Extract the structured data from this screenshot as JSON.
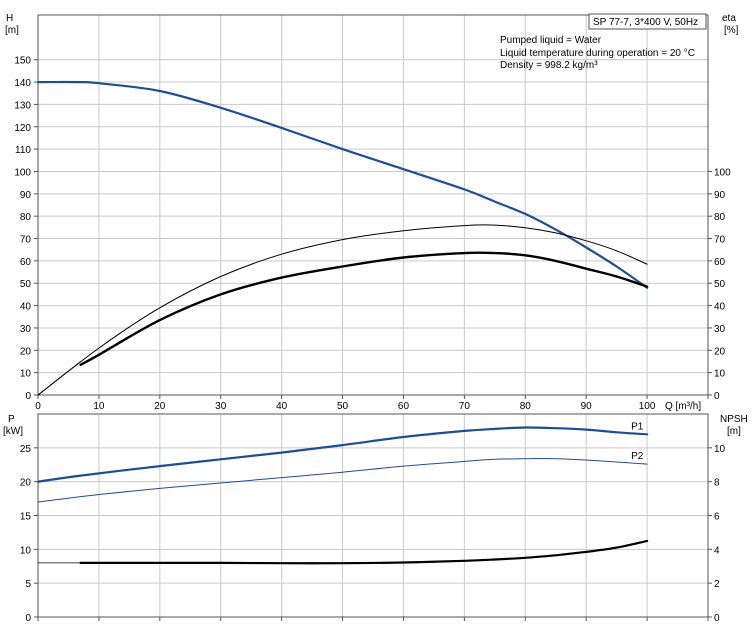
{
  "chart_data": [
    {
      "type": "line",
      "title": "SP 77-7, 3*400 V, 50Hz",
      "notes": [
        "Pumped liquid = Water",
        "Liquid temperature during operation = 20 °C",
        "Density = 998.2 kg/m³"
      ],
      "xlabel": "Q [m³/h]",
      "xlim": [
        0,
        110
      ],
      "x_ticks": [
        "0",
        "10",
        "20",
        "30",
        "40",
        "50",
        "60",
        "70",
        "80",
        "90",
        "100"
      ],
      "ylabel_left": {
        "line1": "H",
        "line2": "[m]"
      },
      "ylim_left": [
        0,
        170
      ],
      "y_ticks_left": [
        "0",
        "10",
        "20",
        "30",
        "40",
        "50",
        "60",
        "70",
        "80",
        "90",
        "100",
        "110",
        "120",
        "130",
        "140",
        "150"
      ],
      "ylabel_right": {
        "line1": "eta",
        "line2": "[%]"
      },
      "ylim_right": [
        0,
        170
      ],
      "y_ticks_right": [
        "0",
        "10",
        "20",
        "30",
        "40",
        "50",
        "60",
        "70",
        "80",
        "90",
        "100"
      ],
      "grid": true,
      "series": [
        {
          "axis": "left",
          "color": "#1f4e96",
          "width": 2.2,
          "x": [
            0,
            7,
            10,
            20,
            30,
            40,
            50,
            60,
            70,
            75,
            80,
            85,
            90,
            95,
            100
          ],
          "values": [
            140,
            140,
            139.5,
            136,
            128.5,
            119.5,
            110,
            101,
            92,
            86.5,
            81,
            74,
            66,
            57.5,
            48
          ]
        },
        {
          "axis": "right",
          "color": "#000000",
          "width": 1,
          "x": [
            0,
            10,
            20,
            30,
            40,
            50,
            60,
            70,
            75,
            80,
            85,
            90,
            95,
            100
          ],
          "values": [
            0,
            21,
            39,
            53,
            63,
            69.5,
            73.5,
            75.8,
            76,
            74.8,
            72.5,
            69,
            64.5,
            58.5
          ]
        },
        {
          "axis": "right",
          "color": "#000000",
          "width": 2.4,
          "x": [
            7,
            10,
            20,
            30,
            40,
            50,
            60,
            70,
            75,
            80,
            85,
            90,
            95,
            100
          ],
          "values": [
            13.5,
            18,
            33.5,
            45,
            52.5,
            57.5,
            61.5,
            63.5,
            63.5,
            62.5,
            60,
            56.5,
            53,
            48.5
          ]
        },
        {
          "axis": "right",
          "color": "#000000",
          "width": 0.8,
          "x": [
            0,
            7
          ],
          "values": [
            0,
            15
          ]
        }
      ]
    },
    {
      "type": "line",
      "xlim": [
        0,
        110
      ],
      "ylabel_left": {
        "line1": "P",
        "line2": "[kW]"
      },
      "ylim_left": [
        0,
        30
      ],
      "y_ticks_left": [
        "0",
        "5",
        "10",
        "15",
        "20",
        "25"
      ],
      "ylabel_right": {
        "line1": "NPSH",
        "line2": "[m]"
      },
      "ylim_right": [
        0,
        12
      ],
      "y_ticks_right": [
        "0",
        "2",
        "4",
        "6",
        "8",
        "10"
      ],
      "grid": true,
      "series": [
        {
          "name": "P1",
          "axis": "left",
          "color": "#1f4e96",
          "width": 2.2,
          "x": [
            0,
            7,
            20,
            30,
            40,
            50,
            60,
            70,
            75,
            80,
            85,
            90,
            95,
            100
          ],
          "values": [
            20,
            20.9,
            22.3,
            23.3,
            24.3,
            25.4,
            26.6,
            27.5,
            27.8,
            28.0,
            27.9,
            27.7,
            27.3,
            27.0
          ]
        },
        {
          "name": "P2",
          "axis": "left",
          "color": "#1f4e96",
          "width": 1,
          "x": [
            0,
            10,
            20,
            30,
            40,
            50,
            60,
            70,
            75,
            80,
            85,
            90,
            95,
            100
          ],
          "values": [
            17,
            18.1,
            19.0,
            19.8,
            20.6,
            21.4,
            22.3,
            23.0,
            23.3,
            23.4,
            23.4,
            23.2,
            22.9,
            22.6
          ]
        },
        {
          "axis": "right",
          "color": "#000000",
          "width": 2.2,
          "x": [
            7,
            20,
            30,
            40,
            50,
            60,
            70,
            75,
            80,
            85,
            90,
            95,
            100
          ],
          "values": [
            3.2,
            3.2,
            3.2,
            3.18,
            3.18,
            3.22,
            3.32,
            3.4,
            3.5,
            3.65,
            3.85,
            4.1,
            4.5
          ]
        },
        {
          "axis": "right",
          "color": "#000000",
          "width": 0.8,
          "x": [
            0,
            7
          ],
          "values": [
            3.2,
            3.2
          ]
        }
      ]
    }
  ]
}
